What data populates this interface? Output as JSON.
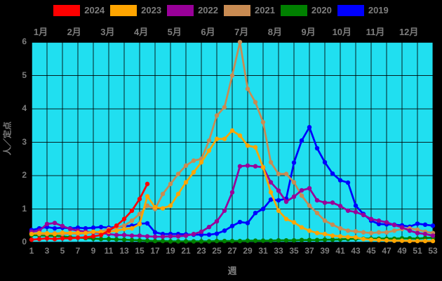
{
  "chart_data": {
    "type": "line",
    "title": "",
    "x_label": "週",
    "y_label": "人／定点",
    "xlim": [
      1,
      53
    ],
    "ylim": [
      0,
      6
    ],
    "grid": true,
    "legend_position": "top",
    "plot_bg": "#20dff0",
    "grid_color": "#000000",
    "frame_color": "#000000",
    "text_color": "#7d7d7d",
    "month_labels": [
      "1月",
      "2月",
      "3月",
      "4月",
      "5月",
      "6月",
      "7月",
      "8月",
      "9月",
      "10月",
      "11月",
      "12月"
    ],
    "x_ticks": [
      1,
      3,
      5,
      7,
      9,
      11,
      13,
      15,
      17,
      19,
      21,
      23,
      25,
      27,
      29,
      31,
      33,
      35,
      37,
      39,
      41,
      43,
      45,
      47,
      49,
      51,
      53
    ],
    "y_ticks": [
      0,
      1,
      2,
      3,
      4,
      5,
      6
    ],
    "x_unit": "week",
    "series": [
      {
        "name": "2024",
        "color": "#ff0000",
        "values": [
          0.08,
          0.1,
          0.12,
          0.1,
          0.12,
          0.12,
          0.14,
          0.15,
          0.18,
          0.22,
          0.35,
          0.5,
          0.7,
          0.95,
          1.3,
          1.75
        ]
      },
      {
        "name": "2023",
        "color": "#ffa500",
        "values": [
          0.25,
          0.28,
          0.27,
          0.25,
          0.29,
          0.28,
          0.29,
          0.28,
          0.32,
          0.3,
          0.32,
          0.35,
          0.4,
          0.42,
          0.55,
          1.38,
          1.05,
          1.02,
          1.1,
          1.45,
          1.8,
          2.1,
          2.4,
          2.75,
          3.1,
          3.1,
          3.35,
          3.2,
          2.9,
          2.85,
          2.25,
          1.5,
          0.95,
          0.7,
          0.6,
          0.45,
          0.35,
          0.28,
          0.25,
          0.2,
          0.18,
          0.16,
          0.15,
          0.1,
          0.08,
          0.07,
          0.06,
          0.05,
          0.05,
          0.04,
          0.04,
          0.04,
          0.04
        ]
      },
      {
        "name": "2022",
        "color": "#990099",
        "values": [
          0.32,
          0.35,
          0.55,
          0.58,
          0.49,
          0.4,
          0.35,
          0.32,
          0.3,
          0.28,
          0.25,
          0.22,
          0.22,
          0.2,
          0.2,
          0.18,
          0.17,
          0.17,
          0.18,
          0.18,
          0.2,
          0.25,
          0.32,
          0.46,
          0.63,
          0.95,
          1.5,
          2.28,
          2.3,
          2.28,
          2.25,
          1.8,
          1.55,
          1.22,
          1.37,
          1.56,
          1.62,
          1.26,
          1.19,
          1.19,
          1.09,
          0.95,
          0.91,
          0.82,
          0.7,
          0.65,
          0.6,
          0.52,
          0.45,
          0.35,
          0.28,
          0.25,
          0.2
        ]
      },
      {
        "name": "2021",
        "color": "#c98b52",
        "values": [
          0.28,
          0.25,
          0.25,
          0.27,
          0.25,
          0.27,
          0.25,
          0.28,
          0.3,
          0.32,
          0.4,
          0.45,
          0.5,
          0.65,
          0.85,
          1.1,
          1.0,
          1.45,
          1.75,
          2.05,
          2.3,
          2.45,
          2.5,
          3.05,
          3.8,
          4.05,
          5.0,
          6.0,
          4.6,
          4.2,
          3.6,
          2.4,
          2.05,
          2.05,
          1.8,
          1.4,
          1.1,
          0.88,
          0.65,
          0.53,
          0.42,
          0.35,
          0.33,
          0.3,
          0.28,
          0.3,
          0.3,
          0.35,
          0.4,
          0.42,
          0.38,
          0.32,
          0.28
        ]
      },
      {
        "name": "2020",
        "color": "#008000",
        "values": [
          0.22,
          0.21,
          0.2,
          0.2,
          0.18,
          0.15,
          0.14,
          0.13,
          0.11,
          0.1,
          0.1,
          0.09,
          0.08,
          0.07,
          0.06,
          0.05,
          0.04,
          0.04,
          0.03,
          0.03,
          0.03,
          0.03,
          0.03,
          0.03,
          0.04,
          0.04,
          0.04,
          0.04,
          0.05,
          0.05,
          0.05,
          0.05,
          0.06,
          0.06,
          0.06,
          0.07,
          0.07,
          0.07,
          0.08,
          0.08,
          0.09,
          0.1,
          0.11,
          0.11,
          0.11,
          0.11,
          0.11,
          0.11,
          0.12,
          0.12,
          0.11,
          0.13,
          0.14
        ]
      },
      {
        "name": "2019",
        "color": "#0000ff",
        "values": [
          0.37,
          0.42,
          0.46,
          0.42,
          0.44,
          0.42,
          0.44,
          0.42,
          0.44,
          0.46,
          0.44,
          0.46,
          0.48,
          0.5,
          0.56,
          0.57,
          0.3,
          0.25,
          0.25,
          0.25,
          0.24,
          0.23,
          0.23,
          0.23,
          0.26,
          0.35,
          0.49,
          0.61,
          0.58,
          0.88,
          1.0,
          1.28,
          1.26,
          1.31,
          2.39,
          3.05,
          3.45,
          2.82,
          2.4,
          2.06,
          1.86,
          1.79,
          1.1,
          0.85,
          0.65,
          0.55,
          0.54,
          0.53,
          0.51,
          0.47,
          0.56,
          0.53,
          0.5
        ]
      }
    ]
  }
}
